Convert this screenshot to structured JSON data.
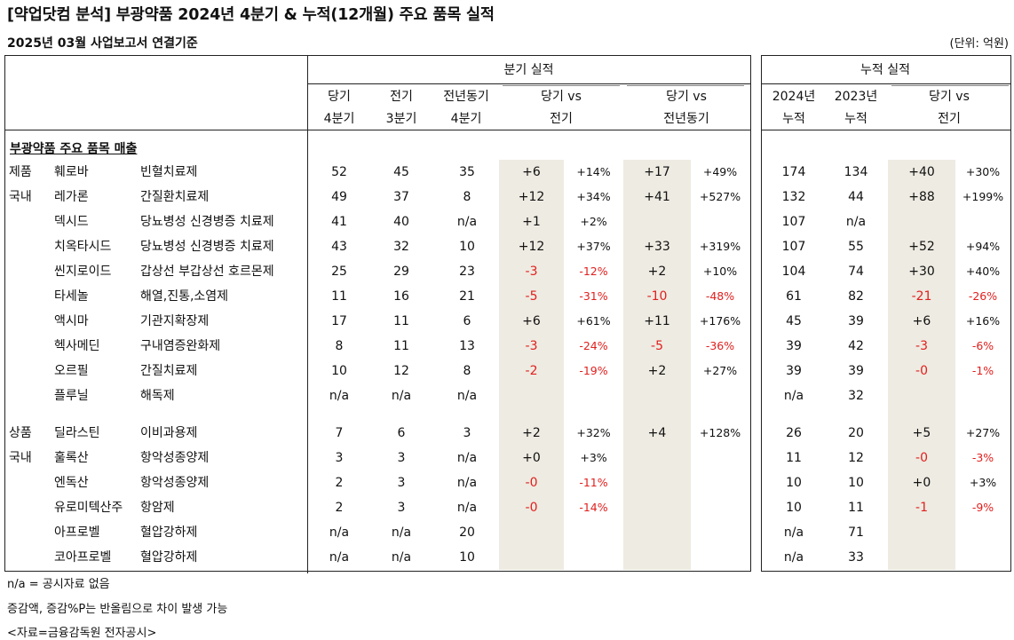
{
  "title": "[약업닷컴 분석] 부광약품 2024년 4분기 & 누적(12개월) 주요 품목 실적",
  "subtitle": "2025년 03월 사업보고서 연결기준",
  "unit": "(단위: 억원)",
  "headers": {
    "quarter_group": "분기 실적",
    "cumulative_group": "누적 실적",
    "q_cur": [
      "당기",
      "4분기"
    ],
    "q_prev": [
      "전기",
      "3분기"
    ],
    "q_yoy": [
      "전년동기",
      "4분기"
    ],
    "vs_prev": [
      "당기 vs",
      "전기"
    ],
    "vs_yoy": [
      "당기 vs",
      "전년동기"
    ],
    "cum_cur": [
      "2024년",
      "누적"
    ],
    "cum_prev": [
      "2023년",
      "누적"
    ],
    "cum_vs": [
      "당기 vs",
      "전기"
    ]
  },
  "section_title": "부광약품 주요 품목 매출",
  "group_labels": [
    {
      "label": "제품",
      "row": 0
    },
    {
      "label": "국내",
      "row": 1
    },
    {
      "label": "상품",
      "row": 10
    },
    {
      "label": "국내",
      "row": 11
    }
  ],
  "rows": [
    {
      "name": "훼로바",
      "category": "빈혈치료제",
      "q_cur": "52",
      "q_prev": "45",
      "q_yoy": "35",
      "d_prev": "+6",
      "p_prev": "+14%",
      "d_yoy": "+17",
      "p_yoy": "+49%",
      "cum_cur": "174",
      "cum_prev": "134",
      "d_cum": "+40",
      "p_cum": "+30%"
    },
    {
      "name": "레가론",
      "category": "간질환치료제",
      "q_cur": "49",
      "q_prev": "37",
      "q_yoy": "8",
      "d_prev": "+12",
      "p_prev": "+34%",
      "d_yoy": "+41",
      "p_yoy": "+527%",
      "cum_cur": "132",
      "cum_prev": "44",
      "d_cum": "+88",
      "p_cum": "+199%"
    },
    {
      "name": "덱시드",
      "category": "당뇨병성 신경병증 치료제",
      "q_cur": "41",
      "q_prev": "40",
      "q_yoy": "n/a",
      "d_prev": "+1",
      "p_prev": "+2%",
      "d_yoy": "",
      "p_yoy": "",
      "cum_cur": "107",
      "cum_prev": "n/a",
      "d_cum": "",
      "p_cum": ""
    },
    {
      "name": "치옥타시드",
      "category": "당뇨병성 신경병증 치료제",
      "q_cur": "43",
      "q_prev": "32",
      "q_yoy": "10",
      "d_prev": "+12",
      "p_prev": "+37%",
      "d_yoy": "+33",
      "p_yoy": "+319%",
      "cum_cur": "107",
      "cum_prev": "55",
      "d_cum": "+52",
      "p_cum": "+94%"
    },
    {
      "name": "씬지로이드",
      "category": "갑상선 부갑상선 호르몬제",
      "q_cur": "25",
      "q_prev": "29",
      "q_yoy": "23",
      "d_prev": "-3",
      "p_prev": "-12%",
      "d_yoy": "+2",
      "p_yoy": "+10%",
      "cum_cur": "104",
      "cum_prev": "74",
      "d_cum": "+30",
      "p_cum": "+40%"
    },
    {
      "name": "타세놀",
      "category": "해열,진통,소염제",
      "q_cur": "11",
      "q_prev": "16",
      "q_yoy": "21",
      "d_prev": "-5",
      "p_prev": "-31%",
      "d_yoy": "-10",
      "p_yoy": "-48%",
      "cum_cur": "61",
      "cum_prev": "82",
      "d_cum": "-21",
      "p_cum": "-26%"
    },
    {
      "name": "액시마",
      "category": "기관지확장제",
      "q_cur": "17",
      "q_prev": "11",
      "q_yoy": "6",
      "d_prev": "+6",
      "p_prev": "+61%",
      "d_yoy": "+11",
      "p_yoy": "+176%",
      "cum_cur": "45",
      "cum_prev": "39",
      "d_cum": "+6",
      "p_cum": "+16%"
    },
    {
      "name": "헥사메딘",
      "category": "구내염증완화제",
      "q_cur": "8",
      "q_prev": "11",
      "q_yoy": "13",
      "d_prev": "-3",
      "p_prev": "-24%",
      "d_yoy": "-5",
      "p_yoy": "-36%",
      "cum_cur": "39",
      "cum_prev": "42",
      "d_cum": "-3",
      "p_cum": "-6%"
    },
    {
      "name": "오르필",
      "category": "간질치료제",
      "q_cur": "10",
      "q_prev": "12",
      "q_yoy": "8",
      "d_prev": "-2",
      "p_prev": "-19%",
      "d_yoy": "+2",
      "p_yoy": "+27%",
      "cum_cur": "39",
      "cum_prev": "39",
      "d_cum": "-0",
      "p_cum": "-1%"
    },
    {
      "name": "플루닐",
      "category": "해독제",
      "q_cur": "n/a",
      "q_prev": "n/a",
      "q_yoy": "n/a",
      "d_prev": "",
      "p_prev": "",
      "d_yoy": "",
      "p_yoy": "",
      "cum_cur": "n/a",
      "cum_prev": "32",
      "d_cum": "",
      "p_cum": ""
    },
    {
      "name": "딜라스틴",
      "category": "이비과용제",
      "q_cur": "7",
      "q_prev": "6",
      "q_yoy": "3",
      "d_prev": "+2",
      "p_prev": "+32%",
      "d_yoy": "+4",
      "p_yoy": "+128%",
      "cum_cur": "26",
      "cum_prev": "20",
      "d_cum": "+5",
      "p_cum": "+27%"
    },
    {
      "name": "훌록산",
      "category": "항악성종양제",
      "q_cur": "3",
      "q_prev": "3",
      "q_yoy": "n/a",
      "d_prev": "+0",
      "p_prev": "+3%",
      "d_yoy": "",
      "p_yoy": "",
      "cum_cur": "11",
      "cum_prev": "12",
      "d_cum": "-0",
      "p_cum": "-3%"
    },
    {
      "name": "엔독산",
      "category": "항악성종양제",
      "q_cur": "2",
      "q_prev": "3",
      "q_yoy": "n/a",
      "d_prev": "-0",
      "p_prev": "-11%",
      "d_yoy": "",
      "p_yoy": "",
      "cum_cur": "10",
      "cum_prev": "10",
      "d_cum": "+0",
      "p_cum": "+3%"
    },
    {
      "name": "유로미텍산주",
      "category": "항암제",
      "q_cur": "2",
      "q_prev": "3",
      "q_yoy": "n/a",
      "d_prev": "-0",
      "p_prev": "-14%",
      "d_yoy": "",
      "p_yoy": "",
      "cum_cur": "10",
      "cum_prev": "11",
      "d_cum": "-1",
      "p_cum": "-9%"
    },
    {
      "name": "아프로벨",
      "category": "혈압강하제",
      "q_cur": "n/a",
      "q_prev": "n/a",
      "q_yoy": "20",
      "d_prev": "",
      "p_prev": "",
      "d_yoy": "",
      "p_yoy": "",
      "cum_cur": "n/a",
      "cum_prev": "71",
      "d_cum": "",
      "p_cum": ""
    },
    {
      "name": "코아프로벨",
      "category": "혈압강하제",
      "q_cur": "n/a",
      "q_prev": "n/a",
      "q_yoy": "10",
      "d_prev": "",
      "p_prev": "",
      "d_yoy": "",
      "p_yoy": "",
      "cum_cur": "n/a",
      "cum_prev": "33",
      "d_cum": "",
      "p_cum": ""
    }
  ],
  "footnotes": [
    "n/a = 공시자료 없음",
    "증감액, 증감%P는 반올림으로 차이 발생 가능",
    "<자료=금융감독원 전자공시>"
  ]
}
